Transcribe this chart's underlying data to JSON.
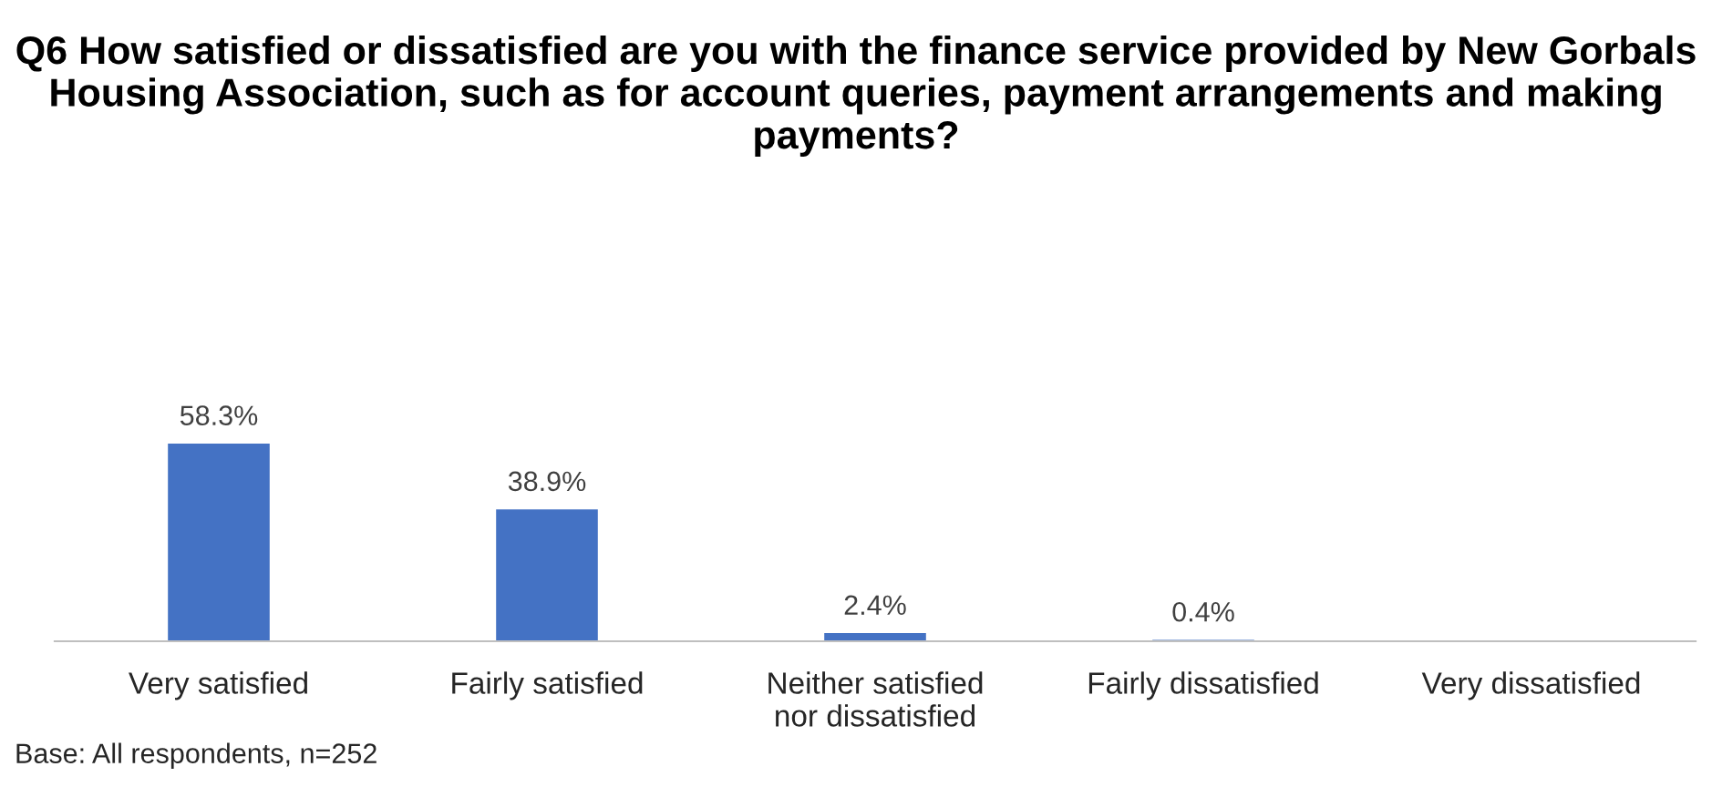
{
  "chart_data": {
    "type": "bar",
    "title": "Q6 How satisfied or dissatisfied are you with the finance service provided by New Gorbals Housing Association, such as for account queries, payment arrangements and making payments?",
    "categories": [
      "Very satisfied",
      "Fairly satisfied",
      "Neither satisfied\nnor dissatisfied",
      "Fairly dissatisfied",
      "Very dissatisfied"
    ],
    "values": [
      58.3,
      38.9,
      2.4,
      0.4,
      0
    ],
    "value_labels": [
      "58.3%",
      "38.9%",
      "2.4%",
      "0.4%",
      null
    ],
    "color": "#4472c4",
    "annotations": [
      "Base: All respondents, n=252"
    ]
  }
}
